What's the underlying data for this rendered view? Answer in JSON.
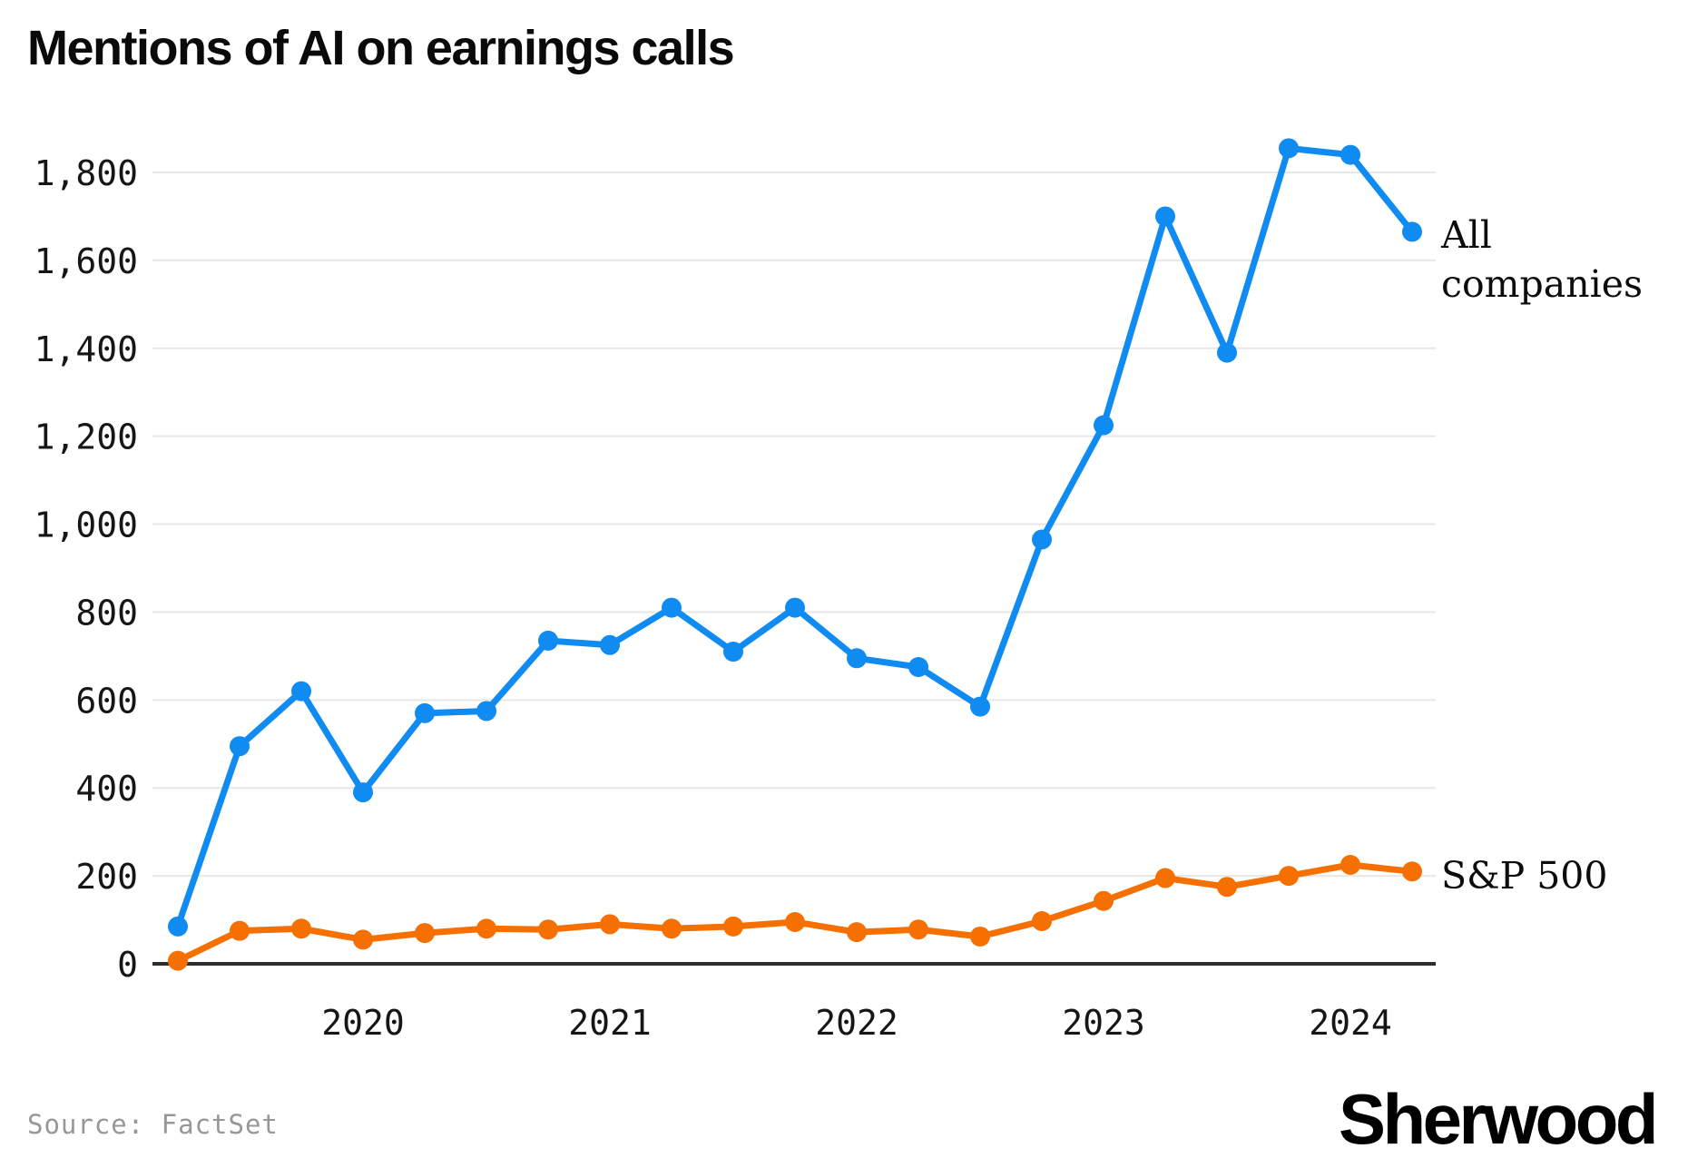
{
  "title": "Mentions of AI on earnings calls",
  "source_note": "Source: FactSet",
  "logo_text": "Sherwood",
  "series_labels": {
    "all_line1": "All",
    "all_line2": "companies",
    "sp500": "S&P 500"
  },
  "colors": {
    "all_companies": "#0f8bf2",
    "sp500": "#f57000",
    "grid": "#e7e7e7",
    "axis": "#2d2d2d",
    "tick_text": "#161616",
    "source_text": "#979797"
  },
  "chart_data": {
    "type": "line",
    "x": [
      "2019 Q2",
      "2019 Q3",
      "2019 Q4",
      "2020 Q1",
      "2020 Q2",
      "2020 Q3",
      "2020 Q4",
      "2021 Q1",
      "2021 Q2",
      "2021 Q3",
      "2021 Q4",
      "2022 Q1",
      "2022 Q2",
      "2022 Q3",
      "2022 Q4",
      "2023 Q1",
      "2023 Q2",
      "2023 Q3",
      "2023 Q4",
      "2024 Q1",
      "2024 Q2"
    ],
    "series": [
      {
        "name": "All companies",
        "color_key": "all_companies",
        "values": [
          85,
          495,
          620,
          390,
          570,
          575,
          735,
          725,
          810,
          710,
          810,
          695,
          675,
          585,
          965,
          1225,
          1700,
          1390,
          1855,
          1840,
          1665
        ]
      },
      {
        "name": "S&P 500",
        "color_key": "sp500",
        "values": [
          7,
          75,
          80,
          55,
          70,
          80,
          78,
          90,
          80,
          85,
          95,
          72,
          78,
          62,
          97,
          143,
          195,
          175,
          200,
          225,
          210
        ]
      }
    ],
    "xticks": [
      {
        "label": "2020",
        "index": 3
      },
      {
        "label": "2021",
        "index": 7
      },
      {
        "label": "2022",
        "index": 11
      },
      {
        "label": "2023",
        "index": 15
      },
      {
        "label": "2024",
        "index": 19
      }
    ],
    "title": "Mentions of AI on earnings calls",
    "xlabel": "",
    "ylabel": "",
    "ylim": [
      0,
      1800
    ],
    "ytick_step": 200,
    "grid": "horizontal",
    "legend": "direct-line-labels-right"
  }
}
